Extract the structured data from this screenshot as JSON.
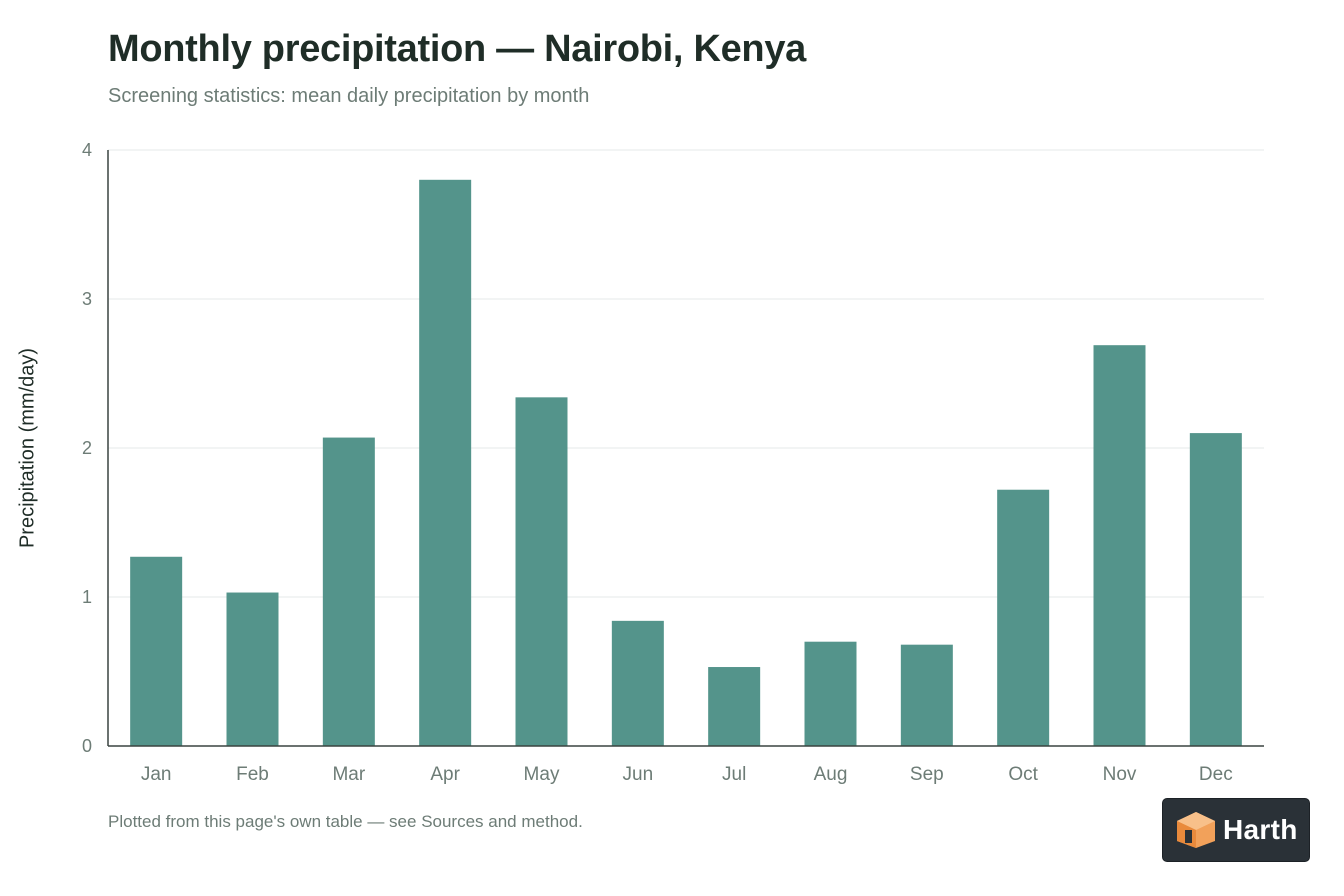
{
  "chart_data": {
    "type": "bar",
    "title": "Monthly precipitation — Nairobi, Kenya",
    "subtitle": "Screening statistics: mean daily precipitation by month",
    "xlabel": "",
    "ylabel": "Precipitation (mm/day)",
    "ylim": [
      0,
      4
    ],
    "yticks": [
      0,
      1,
      2,
      3,
      4
    ],
    "grid": true,
    "categories": [
      "Jan",
      "Feb",
      "Mar",
      "Apr",
      "May",
      "Jun",
      "Jul",
      "Aug",
      "Sep",
      "Oct",
      "Nov",
      "Dec"
    ],
    "values": [
      1.27,
      1.03,
      2.07,
      3.8,
      2.34,
      0.84,
      0.53,
      0.7,
      0.68,
      1.72,
      2.69,
      2.1
    ],
    "bar_color": "#54948b"
  },
  "footnote": "Plotted from this page's own table — see Sources and method.",
  "badge": {
    "label": "Harth",
    "icon": "harth-logo-icon"
  }
}
